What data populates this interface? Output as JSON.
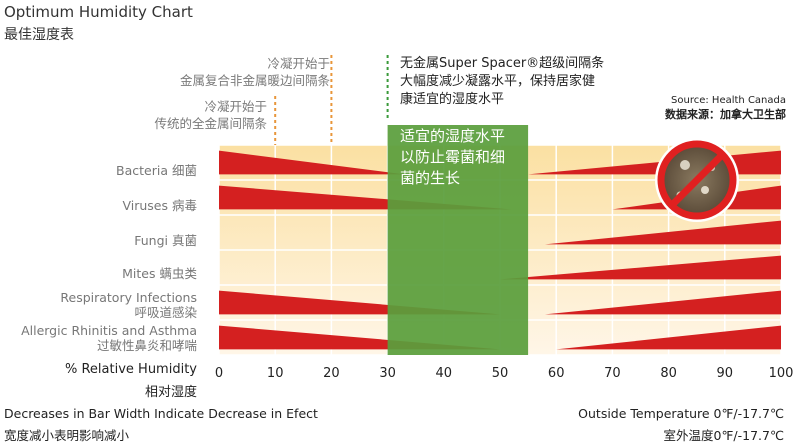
{
  "chart_data": {
    "type": "area",
    "title": "Optimum Humidity Chart",
    "title_zh": "最佳湿度表",
    "xlabel": "% Relative Humidity",
    "xlabel_zh": "相对湿度",
    "xlim": [
      0,
      100
    ],
    "x_ticks": [
      0,
      10,
      20,
      30,
      40,
      50,
      60,
      70,
      80,
      90,
      100
    ],
    "optimum_zone": {
      "from": 30,
      "to": 55,
      "color": "#5a9e3c",
      "label": [
        "适宜的湿度水平",
        "以防止霉菌和细",
        "菌的生长"
      ]
    },
    "rows": [
      {
        "name": "Bacteria",
        "name_zh": "细菌",
        "decrease_to": 33,
        "increase_from": 55
      },
      {
        "name": "Viruses",
        "name_zh": "病毒",
        "decrease_to": 52,
        "increase_from": 70
      },
      {
        "name": "Fungi",
        "name_zh": "真菌",
        "decrease_to": null,
        "increase_from": 58
      },
      {
        "name": "Mites",
        "name_zh": "螨虫类",
        "decrease_to": null,
        "increase_from": 50
      },
      {
        "name": "Respiratory Infections",
        "name_zh": "呼吸道感染",
        "decrease_to": 50,
        "increase_from": 58
      },
      {
        "name": "Allergic Rhinitis and Asthma",
        "name_zh": "过敏性鼻炎和哮喘",
        "decrease_to": 50,
        "increase_from": 60
      }
    ],
    "bar_color": "#d42020",
    "annotations": [
      {
        "x": 20,
        "lines": [
          "冷凝开始于",
          "金属复合非金属暖边间隔条"
        ],
        "color": "#e8963a"
      },
      {
        "x": 10,
        "lines": [
          "冷凝开始于",
          "传统的全金属间隔条"
        ],
        "color": "#e8963a"
      },
      {
        "x": 30,
        "lines": [
          "无金属Super Spacer®超级间隔条",
          "大幅度减少凝露水平，保持居家健",
          "康适宜的湿度水平"
        ],
        "color": "#3a9a3a"
      }
    ],
    "source": {
      "en": "Source: Health Canada",
      "zh": "数据来源：加拿大卫生部"
    },
    "footnotes": {
      "left_en": "Decreases in Bar Width Indicate Decrease in Efect",
      "left_zh": "宽度减小表明影响减小",
      "right_en": "Outside Temperature 0℉/-17.7℃",
      "right_zh": "室外温度0℉/-17.7℃"
    }
  }
}
